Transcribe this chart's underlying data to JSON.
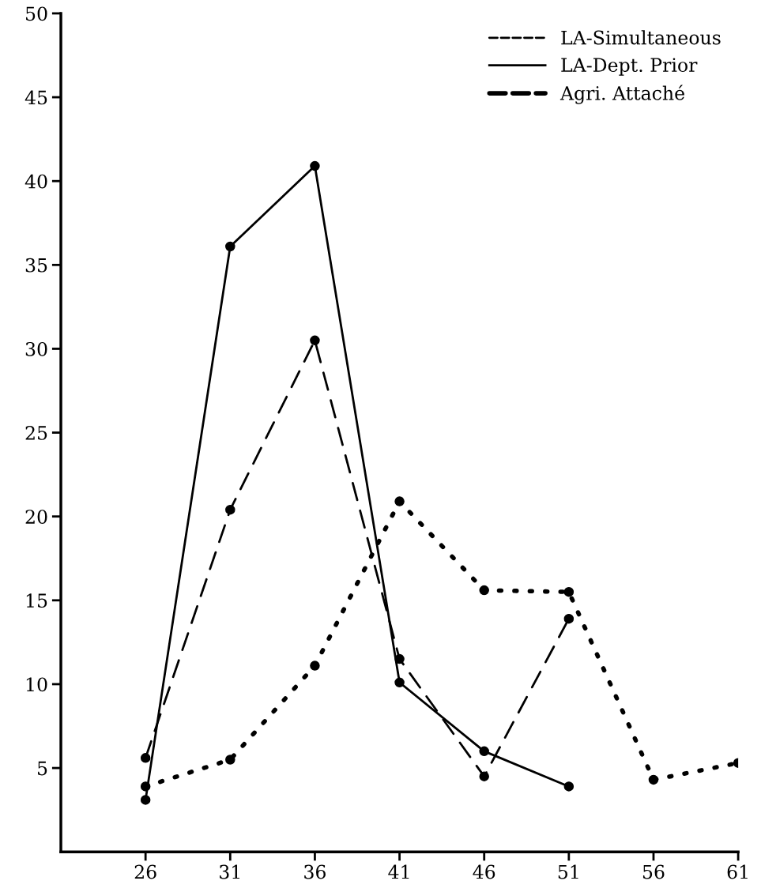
{
  "chart_data": {
    "type": "line",
    "x": [
      26,
      31,
      36,
      41,
      46,
      51,
      56,
      61
    ],
    "series": [
      {
        "name": "LA-Simultaneous",
        "color": "#000000",
        "line_style": "dashed",
        "values": [
          5.6,
          20.4,
          30.5,
          11.5,
          4.5,
          13.9,
          null,
          null
        ]
      },
      {
        "name": "LA-Dept. Prior",
        "color": "#000000",
        "line_style": "solid",
        "values": [
          3.1,
          36.1,
          40.9,
          10.1,
          6.0,
          3.9,
          null,
          null
        ]
      },
      {
        "name": "Agri. Attaché",
        "color": "#000000",
        "line_style": "dotted",
        "values": [
          3.9,
          5.5,
          11.1,
          20.9,
          15.6,
          15.5,
          4.3,
          5.3
        ]
      }
    ],
    "marker": "circle",
    "xlim": [
      21,
      61
    ],
    "xticks": [
      26,
      31,
      36,
      41,
      46,
      51,
      56,
      61
    ],
    "ylim": [
      0,
      50
    ],
    "yticks": [
      5,
      10,
      15,
      20,
      25,
      30,
      35,
      40,
      45,
      50
    ],
    "grid": false,
    "legend": "top right"
  }
}
